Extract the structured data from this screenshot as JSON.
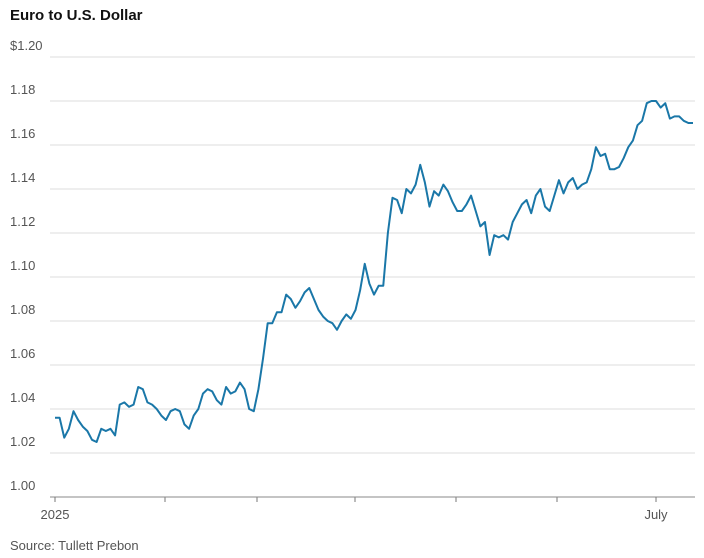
{
  "chart_data": {
    "type": "line",
    "title": "Euro to U.S. Dollar",
    "source": "Source: Tullett Prebon",
    "color": "#1a77a8",
    "grid": true,
    "ylim": [
      1,
      1.2
    ],
    "yticks": [
      {
        "value": 1,
        "label": "1.00"
      },
      1.02,
      1.04,
      1.06,
      1.08,
      {
        "value": 1.1,
        "label": "1.10"
      },
      1.12,
      1.14,
      1.16,
      1.18,
      {
        "value": 1.2,
        "label": "$1.20"
      }
    ],
    "categories": [
      "2025",
      null,
      null,
      null,
      null,
      null,
      null,
      null,
      null,
      null,
      null,
      null,
      null,
      null,
      null,
      null,
      null,
      null,
      null,
      null,
      null,
      null,
      null,
      null,
      null,
      null,
      null,
      null,
      null,
      null,
      null,
      null,
      null,
      null,
      null,
      null,
      null,
      null,
      null,
      null,
      null,
      null,
      null,
      null,
      null,
      null,
      null,
      null,
      null,
      null,
      null,
      null,
      null,
      null,
      null,
      null,
      null,
      null,
      null,
      null,
      null,
      null,
      null,
      null,
      null,
      null,
      null,
      null,
      null,
      null,
      null,
      null,
      null,
      null,
      null,
      null,
      null,
      null,
      null,
      null,
      null,
      null,
      null,
      null,
      null,
      null,
      null,
      null,
      null,
      null,
      null,
      null,
      null,
      null,
      null,
      null,
      null,
      null,
      null,
      null,
      null,
      null,
      null,
      null,
      null,
      null,
      null,
      null,
      null,
      null,
      null,
      null,
      null,
      null,
      null,
      null,
      null,
      null,
      null,
      null,
      null,
      null,
      null,
      null,
      null,
      null,
      null,
      null,
      null,
      null,
      "July",
      null,
      null,
      null,
      null,
      null,
      null,
      null,
      null
    ],
    "values": [
      1.036,
      1.036,
      1.027,
      1.031,
      1.039,
      1.035,
      1.032,
      1.03,
      1.026,
      1.025,
      1.031,
      1.03,
      1.031,
      1.028,
      1.042,
      1.043,
      1.041,
      1.042,
      1.05,
      1.049,
      1.043,
      1.042,
      1.04,
      1.037,
      1.035,
      1.039,
      1.04,
      1.039,
      1.033,
      1.031,
      1.037,
      1.04,
      1.047,
      1.049,
      1.048,
      1.044,
      1.042,
      1.05,
      1.047,
      1.048,
      1.052,
      1.049,
      1.04,
      1.039,
      1.049,
      1.063,
      1.079,
      1.079,
      1.084,
      1.084,
      1.092,
      1.09,
      1.086,
      1.089,
      1.093,
      1.095,
      1.09,
      1.085,
      1.082,
      1.08,
      1.079,
      1.076,
      1.08,
      1.083,
      1.081,
      1.085,
      1.094,
      1.106,
      1.097,
      1.092,
      1.096,
      1.096,
      1.12,
      1.136,
      1.135,
      1.129,
      1.14,
      1.138,
      1.142,
      1.151,
      1.143,
      1.132,
      1.139,
      1.137,
      1.142,
      1.139,
      1.134,
      1.13,
      1.13,
      1.133,
      1.137,
      1.13,
      1.123,
      1.125,
      1.11,
      1.119,
      1.118,
      1.119,
      1.117,
      1.125,
      1.129,
      1.133,
      1.135,
      1.129,
      1.137,
      1.14,
      1.132,
      1.13,
      1.137,
      1.144,
      1.138,
      1.143,
      1.145,
      1.14,
      1.142,
      1.143,
      1.149,
      1.159,
      1.155,
      1.156,
      1.149,
      1.149,
      1.15,
      1.154,
      1.159,
      1.162,
      1.169,
      1.171,
      1.179,
      1.18,
      1.18,
      1.177,
      1.179,
      1.172,
      1.173,
      1.173,
      1.171,
      1.17,
      1.17
    ]
  }
}
